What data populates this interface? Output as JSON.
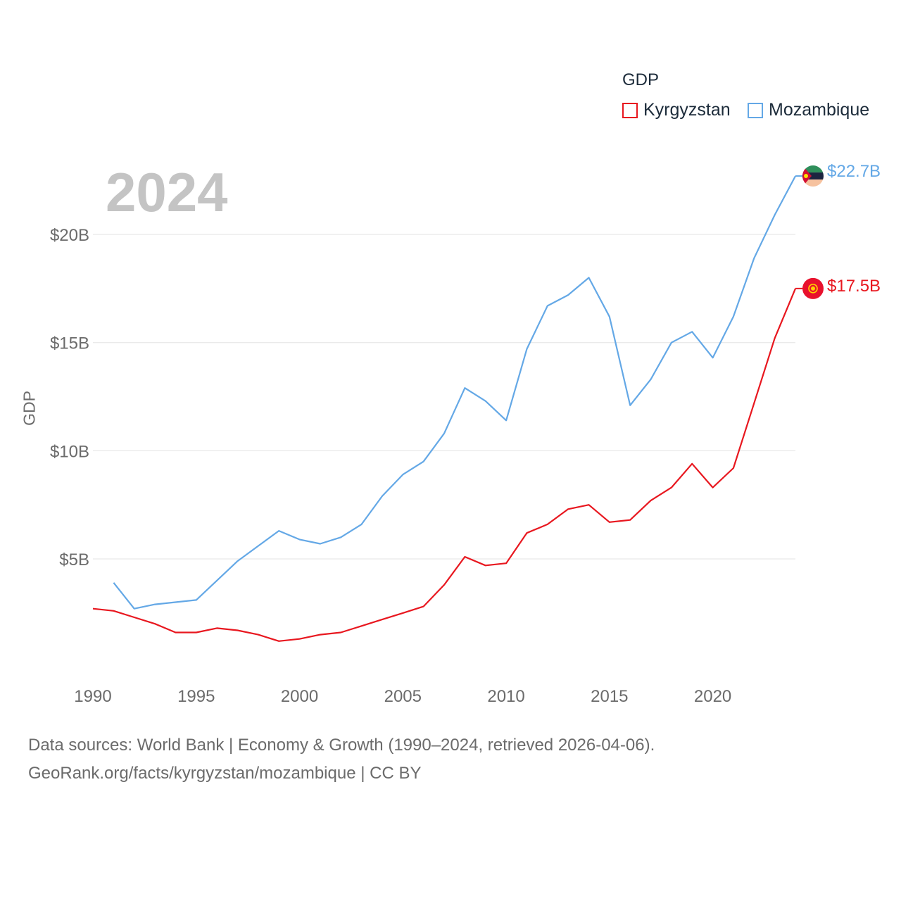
{
  "legend": {
    "title": "GDP",
    "items": [
      {
        "label": "Kyrgyzstan",
        "color": "#e8171f"
      },
      {
        "label": "Mozambique",
        "color": "#64a8e6"
      }
    ]
  },
  "year_label": "2024",
  "end_labels": {
    "kyrgyzstan": "$17.5B",
    "mozambique": "$22.7B"
  },
  "footer": {
    "line1": "Data sources: World Bank | Economy & Growth (1990–2024, retrieved 2026-04-06).",
    "line2": "GeoRank.org/facts/kyrgyzstan/mozambique | CC BY"
  },
  "chart_data": {
    "type": "line",
    "title": "",
    "xlabel": "",
    "ylabel": "GDP",
    "xlim": [
      1990,
      2024
    ],
    "ylim": [
      0,
      23
    ],
    "x_ticks": [
      1990,
      1995,
      2000,
      2005,
      2010,
      2015,
      2020
    ],
    "y_ticks": [
      {
        "value": 5,
        "label": "$5B"
      },
      {
        "value": 10,
        "label": "$10B"
      },
      {
        "value": 15,
        "label": "$15B"
      },
      {
        "value": 20,
        "label": "$20B"
      }
    ],
    "grid": true,
    "legend_position": "top-right",
    "series": [
      {
        "name": "Kyrgyzstan",
        "color": "#e8171f",
        "x": [
          1990,
          1991,
          1992,
          1993,
          1994,
          1995,
          1996,
          1997,
          1998,
          1999,
          2000,
          2001,
          2002,
          2003,
          2004,
          2005,
          2006,
          2007,
          2008,
          2009,
          2010,
          2011,
          2012,
          2013,
          2014,
          2015,
          2016,
          2017,
          2018,
          2019,
          2020,
          2021,
          2022,
          2023,
          2024
        ],
        "values": [
          2.7,
          2.6,
          2.3,
          2.0,
          1.6,
          1.6,
          1.8,
          1.7,
          1.5,
          1.2,
          1.3,
          1.5,
          1.6,
          1.9,
          2.2,
          2.5,
          2.8,
          3.8,
          5.1,
          4.7,
          4.8,
          6.2,
          6.6,
          7.3,
          7.5,
          6.7,
          6.8,
          7.7,
          8.3,
          9.4,
          8.3,
          9.2,
          12.2,
          15.2,
          17.5
        ]
      },
      {
        "name": "Mozambique",
        "color": "#64a8e6",
        "x": [
          1991,
          1992,
          1993,
          1994,
          1995,
          1996,
          1997,
          1998,
          1999,
          2000,
          2001,
          2002,
          2003,
          2004,
          2005,
          2006,
          2007,
          2008,
          2009,
          2010,
          2011,
          2012,
          2013,
          2014,
          2015,
          2016,
          2017,
          2018,
          2019,
          2020,
          2021,
          2022,
          2023,
          2024
        ],
        "values": [
          3.9,
          2.7,
          2.9,
          3.0,
          3.1,
          4.0,
          4.9,
          5.6,
          6.3,
          5.9,
          5.7,
          6.0,
          6.6,
          7.9,
          8.9,
          9.5,
          10.8,
          12.9,
          12.3,
          11.4,
          14.7,
          16.7,
          17.2,
          18.0,
          16.2,
          12.1,
          13.3,
          15.0,
          15.5,
          14.3,
          16.2,
          18.9,
          20.9,
          22.7
        ]
      }
    ]
  }
}
